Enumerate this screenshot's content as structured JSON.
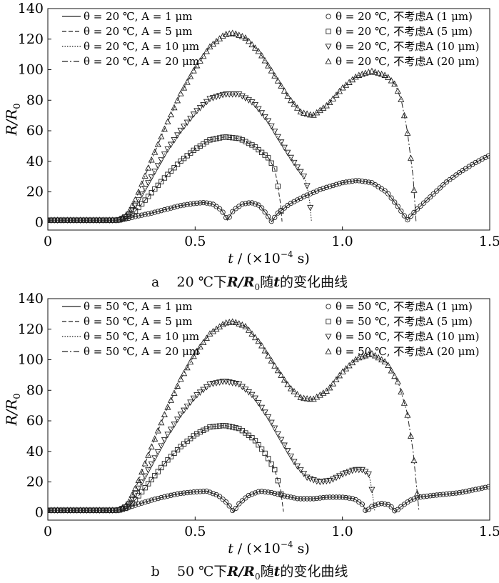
{
  "figure": {
    "xlabel_var": "t",
    "xlabel_unit": " / (×10",
    "xlabel_exp": "−4",
    "xlabel_tail": " s)",
    "ylabel_main": "R/R",
    "ylabel_sub": "0"
  },
  "chart_data": [
    {
      "type": "line",
      "panel": "a",
      "caption_letter": "a",
      "caption_text": "20 ℃下",
      "caption_expr": "R/R",
      "caption_sub": "0",
      "caption_mid": "随",
      "caption_var": "t",
      "caption_tail": "的变化曲线",
      "xlim": [
        0,
        1.5
      ],
      "ylim": [
        -5,
        140
      ],
      "xticks": [
        0,
        0.5,
        1.0,
        1.5
      ],
      "xtick_labels": [
        "0",
        "0.5",
        "1.0",
        "1.5"
      ],
      "yticks": [
        0,
        20,
        40,
        60,
        80,
        100,
        120,
        140
      ],
      "ytick_labels": [
        "0",
        "20",
        "40",
        "60",
        "80",
        "100",
        "120",
        "140"
      ],
      "xlabel": "t / (×10−4 s)",
      "ylabel": "R/R0",
      "legend_left": [
        {
          "line": "solid",
          "label": "θ = 20 ℃, A = 1 μm"
        },
        {
          "line": "dashed",
          "label": "θ = 20 ℃, A = 5 μm"
        },
        {
          "line": "dotted",
          "label": "θ = 20 ℃, A = 10 μm"
        },
        {
          "line": "dashdot",
          "label": "θ = 20 ℃, A = 20 μm"
        }
      ],
      "legend_right": [
        {
          "marker": "circle",
          "label": "θ = 20 ℃, 不考虑A (1 μm)"
        },
        {
          "marker": "square",
          "label": "θ = 20 ℃, 不考虑A (5 μm)"
        },
        {
          "marker": "tri-down",
          "label": "θ = 20 ℃, 不考虑A (10 μm)"
        },
        {
          "marker": "tri-up",
          "label": "θ = 20 ℃, 不考虑A (20 μm)"
        }
      ],
      "series": [
        {
          "name": "A = 1 μm",
          "marker": "circle",
          "line": "solid",
          "points": [
            [
              0,
              1.5
            ],
            [
              0.24,
              1.5
            ],
            [
              0.27,
              2.5
            ],
            [
              0.3,
              4
            ],
            [
              0.35,
              6
            ],
            [
              0.4,
              8.5
            ],
            [
              0.45,
              11
            ],
            [
              0.5,
              12.5
            ],
            [
              0.53,
              13
            ],
            [
              0.56,
              12
            ],
            [
              0.59,
              8
            ],
            [
              0.61,
              1.5
            ],
            [
              0.63,
              8
            ],
            [
              0.66,
              12
            ],
            [
              0.69,
              13
            ],
            [
              0.72,
              11
            ],
            [
              0.74,
              6
            ],
            [
              0.76,
              0.5
            ],
            [
              0.78,
              6
            ],
            [
              0.82,
              12
            ],
            [
              0.87,
              17
            ],
            [
              0.93,
              22
            ],
            [
              1.0,
              26
            ],
            [
              1.05,
              27.5
            ],
            [
              1.1,
              26
            ],
            [
              1.15,
              20
            ],
            [
              1.19,
              10
            ],
            [
              1.22,
              1.5
            ],
            [
              1.25,
              8
            ],
            [
              1.3,
              17
            ],
            [
              1.35,
              26
            ],
            [
              1.4,
              33
            ],
            [
              1.45,
              39
            ],
            [
              1.5,
              44
            ]
          ]
        },
        {
          "name": "A = 5 μm",
          "marker": "square",
          "line": "dashed",
          "points": [
            [
              0,
              1.5
            ],
            [
              0.24,
              1.5
            ],
            [
              0.27,
              3
            ],
            [
              0.3,
              8
            ],
            [
              0.35,
              19
            ],
            [
              0.4,
              30
            ],
            [
              0.45,
              40
            ],
            [
              0.5,
              48
            ],
            [
              0.55,
              54
            ],
            [
              0.6,
              56
            ],
            [
              0.65,
              55
            ],
            [
              0.7,
              50
            ],
            [
              0.75,
              42
            ],
            [
              0.77,
              35
            ],
            [
              0.78,
              25
            ],
            [
              0.79,
              12
            ],
            [
              0.795,
              0.5
            ]
          ]
        },
        {
          "name": "A = 10 μm",
          "marker": "tri-down",
          "line": "dotted",
          "points": [
            [
              0,
              1.5
            ],
            [
              0.24,
              1.5
            ],
            [
              0.27,
              4
            ],
            [
              0.3,
              12
            ],
            [
              0.35,
              29
            ],
            [
              0.4,
              46
            ],
            [
              0.45,
              60
            ],
            [
              0.5,
              72
            ],
            [
              0.55,
              81
            ],
            [
              0.6,
              84
            ],
            [
              0.65,
              84
            ],
            [
              0.7,
              78
            ],
            [
              0.75,
              66
            ],
            [
              0.8,
              50
            ],
            [
              0.84,
              38
            ],
            [
              0.87,
              30
            ],
            [
              0.88,
              24
            ],
            [
              0.89,
              12
            ],
            [
              0.895,
              0.5
            ]
          ]
        },
        {
          "name": "A = 20 μm",
          "marker": "tri-up",
          "line": "dashdot",
          "points": [
            [
              0,
              1.5
            ],
            [
              0.24,
              1.5
            ],
            [
              0.27,
              5
            ],
            [
              0.3,
              16
            ],
            [
              0.35,
              40
            ],
            [
              0.4,
              63
            ],
            [
              0.45,
              84
            ],
            [
              0.5,
              101
            ],
            [
              0.55,
              115
            ],
            [
              0.6,
              123
            ],
            [
              0.63,
              124
            ],
            [
              0.67,
              121
            ],
            [
              0.72,
              111
            ],
            [
              0.77,
              96
            ],
            [
              0.82,
              81
            ],
            [
              0.86,
              72
            ],
            [
              0.9,
              70
            ],
            [
              0.95,
              77
            ],
            [
              1.0,
              88
            ],
            [
              1.05,
              96
            ],
            [
              1.1,
              99
            ],
            [
              1.15,
              96
            ],
            [
              1.18,
              90
            ],
            [
              1.2,
              80
            ],
            [
              1.22,
              60
            ],
            [
              1.24,
              30
            ],
            [
              1.25,
              0.5
            ]
          ]
        }
      ]
    },
    {
      "type": "line",
      "panel": "b",
      "caption_letter": "b",
      "caption_text": "50 ℃下",
      "caption_expr": "R/R",
      "caption_sub": "0",
      "caption_mid": "随",
      "caption_var": "t",
      "caption_tail": "的变化曲线",
      "xlim": [
        0,
        1.5
      ],
      "ylim": [
        -5,
        140
      ],
      "xticks": [
        0,
        0.5,
        1.0,
        1.5
      ],
      "xtick_labels": [
        "0",
        "0.5",
        "1.0",
        "1.5"
      ],
      "yticks": [
        0,
        20,
        40,
        60,
        80,
        100,
        120,
        140
      ],
      "ytick_labels": [
        "0",
        "20",
        "40",
        "60",
        "80",
        "100",
        "120",
        "140"
      ],
      "xlabel": "t / (×10−4 s)",
      "ylabel": "R/R0",
      "legend_left": [
        {
          "line": "solid",
          "label": "θ = 50 ℃, A = 1 μm"
        },
        {
          "line": "dashed",
          "label": "θ = 50 ℃, A = 5 μm"
        },
        {
          "line": "dotted",
          "label": "θ = 50 ℃, A = 10 μm"
        },
        {
          "line": "dashdot",
          "label": "θ = 50 ℃, A = 20 μm"
        }
      ],
      "legend_right": [
        {
          "marker": "circle",
          "label": "θ = 50 ℃, 不考虑A (1 μm)"
        },
        {
          "marker": "square",
          "label": "θ = 50 ℃, 不考虑A (5 μm)"
        },
        {
          "marker": "tri-down",
          "label": "θ = 50 ℃, 不考虑A (10 μm)"
        },
        {
          "marker": "tri-up",
          "label": "θ = 50 ℃, 不考虑A (20 μm)"
        }
      ],
      "series": [
        {
          "name": "A = 1 μm",
          "marker": "circle",
          "line": "solid",
          "points": [
            [
              0,
              1.5
            ],
            [
              0.24,
              1.5
            ],
            [
              0.27,
              3
            ],
            [
              0.3,
              5
            ],
            [
              0.35,
              8
            ],
            [
              0.4,
              10.5
            ],
            [
              0.45,
              12.5
            ],
            [
              0.5,
              13.5
            ],
            [
              0.54,
              14
            ],
            [
              0.58,
              11
            ],
            [
              0.61,
              6
            ],
            [
              0.63,
              0.5
            ],
            [
              0.65,
              6
            ],
            [
              0.68,
              11
            ],
            [
              0.72,
              14
            ],
            [
              0.76,
              13
            ],
            [
              0.8,
              11
            ],
            [
              0.85,
              9
            ],
            [
              0.9,
              9
            ],
            [
              0.95,
              10
            ],
            [
              1.0,
              10
            ],
            [
              1.04,
              9
            ],
            [
              1.07,
              5
            ],
            [
              1.08,
              0.5
            ],
            [
              1.1,
              4
            ],
            [
              1.13,
              6
            ],
            [
              1.16,
              5
            ],
            [
              1.18,
              0.5
            ],
            [
              1.2,
              4
            ],
            [
              1.23,
              8
            ],
            [
              1.26,
              10
            ],
            [
              1.3,
              11
            ],
            [
              1.35,
              12
            ],
            [
              1.4,
              13
            ],
            [
              1.45,
              15
            ],
            [
              1.5,
              17
            ]
          ]
        },
        {
          "name": "A = 5 μm",
          "marker": "square",
          "line": "dashed",
          "points": [
            [
              0,
              1.5
            ],
            [
              0.24,
              1.5
            ],
            [
              0.27,
              3
            ],
            [
              0.3,
              9
            ],
            [
              0.35,
              21
            ],
            [
              0.4,
              33
            ],
            [
              0.45,
              43
            ],
            [
              0.5,
              51
            ],
            [
              0.55,
              56
            ],
            [
              0.6,
              57
            ],
            [
              0.65,
              55
            ],
            [
              0.7,
              48
            ],
            [
              0.74,
              38
            ],
            [
              0.77,
              28
            ],
            [
              0.79,
              15
            ],
            [
              0.8,
              0.5
            ]
          ]
        },
        {
          "name": "A = 10 μm",
          "marker": "tri-down",
          "line": "dotted",
          "points": [
            [
              0,
              1.5
            ],
            [
              0.24,
              1.5
            ],
            [
              0.27,
              4
            ],
            [
              0.3,
              13
            ],
            [
              0.35,
              31
            ],
            [
              0.4,
              49
            ],
            [
              0.45,
              64
            ],
            [
              0.5,
              76
            ],
            [
              0.55,
              84
            ],
            [
              0.6,
              86
            ],
            [
              0.65,
              84
            ],
            [
              0.7,
              76
            ],
            [
              0.75,
              62
            ],
            [
              0.8,
              45
            ],
            [
              0.84,
              32
            ],
            [
              0.88,
              23
            ],
            [
              0.92,
              20
            ],
            [
              0.96,
              21
            ],
            [
              1.0,
              25
            ],
            [
              1.04,
              28
            ],
            [
              1.07,
              28
            ],
            [
              1.09,
              25
            ],
            [
              1.1,
              15
            ],
            [
              1.11,
              0.5
            ]
          ]
        },
        {
          "name": "A = 20 μm",
          "marker": "tri-up",
          "line": "dashdot",
          "points": [
            [
              0,
              1.5
            ],
            [
              0.24,
              1.5
            ],
            [
              0.27,
              5
            ],
            [
              0.3,
              17
            ],
            [
              0.35,
              42
            ],
            [
              0.4,
              66
            ],
            [
              0.45,
              87
            ],
            [
              0.5,
              104
            ],
            [
              0.55,
              117
            ],
            [
              0.6,
              124
            ],
            [
              0.63,
              125
            ],
            [
              0.67,
              122
            ],
            [
              0.72,
              111
            ],
            [
              0.77,
              96
            ],
            [
              0.82,
              82
            ],
            [
              0.86,
              75
            ],
            [
              0.9,
              74
            ],
            [
              0.95,
              80
            ],
            [
              1.0,
              92
            ],
            [
              1.05,
              101
            ],
            [
              1.1,
              104
            ],
            [
              1.15,
              98
            ],
            [
              1.19,
              85
            ],
            [
              1.22,
              65
            ],
            [
              1.24,
              40
            ],
            [
              1.26,
              0.5
            ]
          ]
        }
      ]
    }
  ]
}
